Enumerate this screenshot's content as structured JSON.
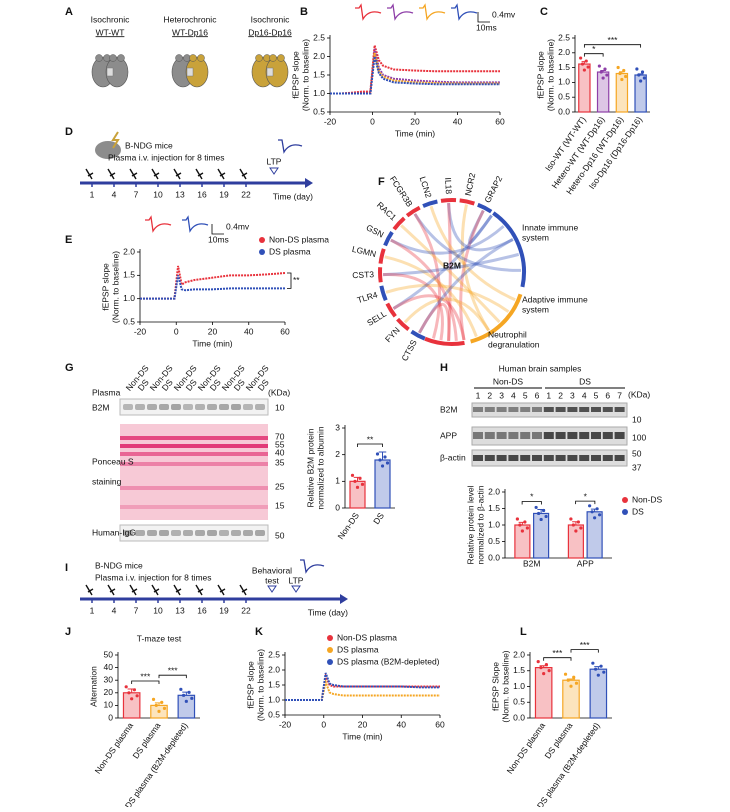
{
  "panel_labels": [
    "A",
    "B",
    "C",
    "D",
    "E",
    "F",
    "G",
    "H",
    "I",
    "J",
    "K",
    "L"
  ],
  "panel_a": {
    "groups": [
      {
        "type": "Isochronic",
        "pair": "WT-WT"
      },
      {
        "type": "Heterochronic",
        "pair": "WT-Dp16"
      },
      {
        "type": "Isochronic",
        "pair": "Dp16-Dp16"
      }
    ]
  },
  "traces_b": {
    "amplitude": "0.4mv",
    "time": "10ms"
  },
  "traces_e": {
    "amplitude": "0.4mv",
    "time": "10ms"
  },
  "panel_d": {
    "mice": "B-NDG mice",
    "treatment": "Plasma i.v. injection for 8 times",
    "days": [
      1,
      4,
      7,
      10,
      13,
      16,
      19,
      22
    ],
    "ltp": "LTP",
    "axis": "Time (day)"
  },
  "panel_f": {
    "center": "B2M",
    "genes": [
      "GRAP2",
      "NCR2",
      "IL18",
      "LCN2",
      "FCGR3B",
      "RAC1",
      "GSN",
      "LGMN",
      "CST3",
      "TLR4",
      "SELL",
      "FYN",
      "CTSS"
    ],
    "pathways": [
      [
        "Innate immune",
        "system"
      ],
      [
        "Adaptive immune",
        "system"
      ],
      [
        "Neutrophil",
        "degranulation"
      ]
    ]
  },
  "panel_g_blot": {
    "plasma": "Plasma",
    "lanes": [
      "Non-DS",
      "DS",
      "Non-DS",
      "DS",
      "Non-DS",
      "DS",
      "Non-DS",
      "DS",
      "Non-DS",
      "DS",
      "Non-DS",
      "DS"
    ],
    "unit": "(KDa)",
    "b2m": "B2M",
    "ponceau": [
      "Ponceau S",
      "staining"
    ],
    "igg": "Human-IgG",
    "b2m_marker": 10,
    "ponceau_markers": [
      70,
      55,
      40,
      35,
      25,
      15
    ],
    "igg_marker": 50
  },
  "panel_h_blot": {
    "title": "Human brain samples",
    "groups": [
      "Non-DS",
      "DS"
    ],
    "non_ds_lanes": [
      1,
      2,
      3,
      4,
      5,
      6
    ],
    "ds_lanes": [
      1,
      2,
      3,
      4,
      5,
      6,
      7
    ],
    "unit": "(KDa)",
    "rows": [
      "B2M",
      "APP",
      "β-actin"
    ],
    "markers": [
      10,
      100,
      50,
      37
    ]
  },
  "panel_i": {
    "mice": "B-NDG mice",
    "treatment": "Plasma i.v. injection for 8 times",
    "days": [
      1,
      4,
      7,
      10,
      13,
      16,
      19,
      22
    ],
    "behavior": [
      "Behavioral",
      "test"
    ],
    "ltp": "LTP",
    "axis": "Time (day)"
  },
  "chart_data": [
    {
      "type": "line",
      "xlabel": "Time (min)",
      "ylabel": [
        "fEPSP slope",
        "(Norm. to baseline)"
      ],
      "xlim": [
        -20,
        60
      ],
      "xticks": [
        -20,
        0,
        20,
        40,
        60
      ],
      "ylim": [
        0.5,
        2.5
      ],
      "yticks": [
        0.5,
        {
          "value": 1,
          "label": "1.0"
        },
        1.5,
        {
          "value": 2,
          "label": "2.0"
        },
        2.5
      ],
      "x": [
        -20,
        -15,
        -10,
        -5,
        -1,
        1,
        3,
        5,
        10,
        20,
        30,
        40,
        50,
        60
      ],
      "series": [
        {
          "color": "#e8323c",
          "values": [
            1.0,
            1.0,
            1.02,
            1.05,
            1.05,
            2.3,
            1.9,
            1.75,
            1.65,
            1.62,
            1.6,
            1.6,
            1.6,
            1.6
          ]
        },
        {
          "color": "#8e3fa8",
          "values": [
            1.0,
            1.0,
            1.0,
            1.0,
            1.0,
            2.2,
            1.7,
            1.5,
            1.4,
            1.35,
            1.32,
            1.3,
            1.3,
            1.3
          ]
        },
        {
          "color": "#f5a623",
          "values": [
            1.0,
            1.0,
            1.0,
            1.0,
            1.0,
            2.1,
            1.6,
            1.45,
            1.35,
            1.3,
            1.28,
            1.27,
            1.27,
            1.27
          ]
        },
        {
          "color": "#3050b8",
          "values": [
            1.0,
            1.0,
            1.0,
            1.0,
            1.0,
            2.0,
            1.55,
            1.4,
            1.3,
            1.27,
            1.25,
            1.25,
            1.25,
            1.25
          ]
        }
      ]
    },
    {
      "type": "bar",
      "ylabel": [
        "fEPSP slope",
        "(Norm. to baseline)"
      ],
      "categories": [
        "Iso-WT (WT-WT)",
        "Hetero-WT (WT-Dp16)",
        "Hetero-Dp16 (WT-Dp16)",
        "Iso-Dp16 (Dp16-Dp16)"
      ],
      "values": [
        1.62,
        1.35,
        1.3,
        1.25
      ],
      "errors": [
        0.08,
        0.05,
        0.06,
        0.04
      ],
      "colors": [
        "#e8323c",
        "#8e3fa8",
        "#f5a623",
        "#3050b8"
      ],
      "ylim": [
        0,
        2.5
      ],
      "yticks": [
        {
          "value": 0,
          "label": "0.0"
        },
        0.5,
        {
          "value": 1,
          "label": "1.0"
        },
        1.5,
        {
          "value": 2,
          "label": "2.0"
        },
        2.5
      ],
      "significance": [
        "*",
        "***"
      ]
    },
    {
      "type": "line",
      "xlabel": "Time (min)",
      "ylabel": [
        "fEPSP slope",
        "(Norm. to baseline)"
      ],
      "xlim": [
        -20,
        60
      ],
      "xticks": [
        -20,
        0,
        20,
        40,
        60
      ],
      "ylim": [
        0.5,
        2.0
      ],
      "yticks": [
        0.5,
        {
          "value": 1,
          "label": "1.0"
        },
        1.5,
        {
          "value": 2,
          "label": "2.0"
        }
      ],
      "x": [
        -20,
        -15,
        -10,
        -5,
        -1,
        1,
        3,
        5,
        10,
        20,
        30,
        40,
        50,
        60
      ],
      "series": [
        {
          "name": "Non-DS plasma",
          "color": "#e8323c",
          "values": [
            1.0,
            1.0,
            1.0,
            1.0,
            1.0,
            1.7,
            1.3,
            1.35,
            1.4,
            1.45,
            1.5,
            1.5,
            1.52,
            1.55
          ]
        },
        {
          "name": "DS plasma",
          "color": "#3050b8",
          "values": [
            1.0,
            1.0,
            1.0,
            1.0,
            1.0,
            1.5,
            1.2,
            1.18,
            1.2,
            1.2,
            1.22,
            1.22,
            1.22,
            1.22
          ]
        }
      ],
      "significance": [
        "**"
      ]
    },
    {
      "type": "bar",
      "ylabel": [
        "Relative B2M protein",
        "normalized to albumin"
      ],
      "categories": [
        "Non-DS",
        "DS"
      ],
      "values": [
        1.0,
        1.8
      ],
      "errors": [
        0.15,
        0.3
      ],
      "colors": [
        "#e8323c",
        "#3050b8"
      ],
      "ylim": [
        0,
        3
      ],
      "yticks": [
        0,
        1,
        2,
        3
      ],
      "significance": [
        "**"
      ]
    },
    {
      "type": "bar",
      "ylabel": [
        "Relative protein level",
        "normalized to β-actin"
      ],
      "categories": [
        "B2M",
        "APP"
      ],
      "series": [
        {
          "name": "Non-DS",
          "color": "#e8323c",
          "values": [
            1.0,
            1.0
          ],
          "errors": [
            0.08,
            0.1
          ]
        },
        {
          "name": "DS",
          "color": "#3050b8",
          "values": [
            1.35,
            1.4
          ],
          "errors": [
            0.12,
            0.08
          ]
        }
      ],
      "ylim": [
        0,
        2
      ],
      "yticks": [
        {
          "value": 0,
          "label": "0.0"
        },
        0.5,
        {
          "value": 1,
          "label": "1.0"
        },
        1.5,
        {
          "value": 2,
          "label": "2.0"
        }
      ],
      "significance": [
        "*",
        "*"
      ]
    },
    {
      "type": "bar",
      "title": "T-maze test",
      "ylabel": [
        "Alternation"
      ],
      "categories": [
        "Non-DS plasma",
        "DS plasma",
        "DS plasma (B2M-depleted)"
      ],
      "values": [
        20,
        10,
        18
      ],
      "errors": [
        3,
        2,
        2.5
      ],
      "colors": [
        "#e8323c",
        "#f5a623",
        "#3050b8"
      ],
      "ylim": [
        0,
        50
      ],
      "yticks": [
        0,
        10,
        20,
        30,
        40,
        50
      ],
      "significance": [
        "***",
        "***"
      ]
    },
    {
      "type": "line",
      "xlabel": "Time (min)",
      "ylabel": [
        "fEPSP slope",
        "(Norm. to baseline)"
      ],
      "xlim": [
        -20,
        60
      ],
      "xticks": [
        -20,
        0,
        20,
        40,
        60
      ],
      "ylim": [
        0.5,
        2.5
      ],
      "yticks": [
        0.5,
        {
          "value": 1,
          "label": "1.0"
        },
        1.5,
        {
          "value": 2,
          "label": "2.0"
        },
        2.5
      ],
      "x": [
        -20,
        -15,
        -10,
        -5,
        -1,
        1,
        3,
        5,
        10,
        20,
        30,
        40,
        50,
        60
      ],
      "series": [
        {
          "name": "Non-DS plasma",
          "color": "#e8323c",
          "values": [
            1.0,
            1.0,
            1.0,
            1.0,
            1.0,
            1.8,
            1.5,
            1.45,
            1.45,
            1.45,
            1.45,
            1.45,
            1.45,
            1.45
          ]
        },
        {
          "name": "DS plasma",
          "color": "#f5a623",
          "values": [
            1.0,
            1.0,
            1.0,
            1.0,
            1.0,
            1.6,
            1.25,
            1.2,
            1.15,
            1.15,
            1.15,
            1.15,
            1.15,
            1.15
          ]
        },
        {
          "name": "DS plasma (B2M-depleted)",
          "color": "#3050b8",
          "values": [
            1.0,
            1.0,
            1.0,
            1.0,
            1.0,
            1.9,
            1.55,
            1.5,
            1.45,
            1.45,
            1.45,
            1.45,
            1.42,
            1.42
          ]
        }
      ]
    },
    {
      "type": "bar",
      "ylabel": [
        "fEPSP Slope",
        "(Norm. to baseline)"
      ],
      "categories": [
        "Non-DS plasma",
        "DS plasma",
        "DS plasma (B2M-depleted)"
      ],
      "values": [
        1.6,
        1.2,
        1.55
      ],
      "errors": [
        0.06,
        0.04,
        0.08
      ],
      "colors": [
        "#e8323c",
        "#f5a623",
        "#3050b8"
      ],
      "ylim": [
        0,
        2
      ],
      "yticks": [
        {
          "value": 0,
          "label": "0.0"
        },
        0.5,
        {
          "value": 1,
          "label": "1.0"
        },
        1.5,
        {
          "value": 2,
          "label": "2.0"
        }
      ],
      "significance": [
        "***",
        "***"
      ]
    }
  ]
}
